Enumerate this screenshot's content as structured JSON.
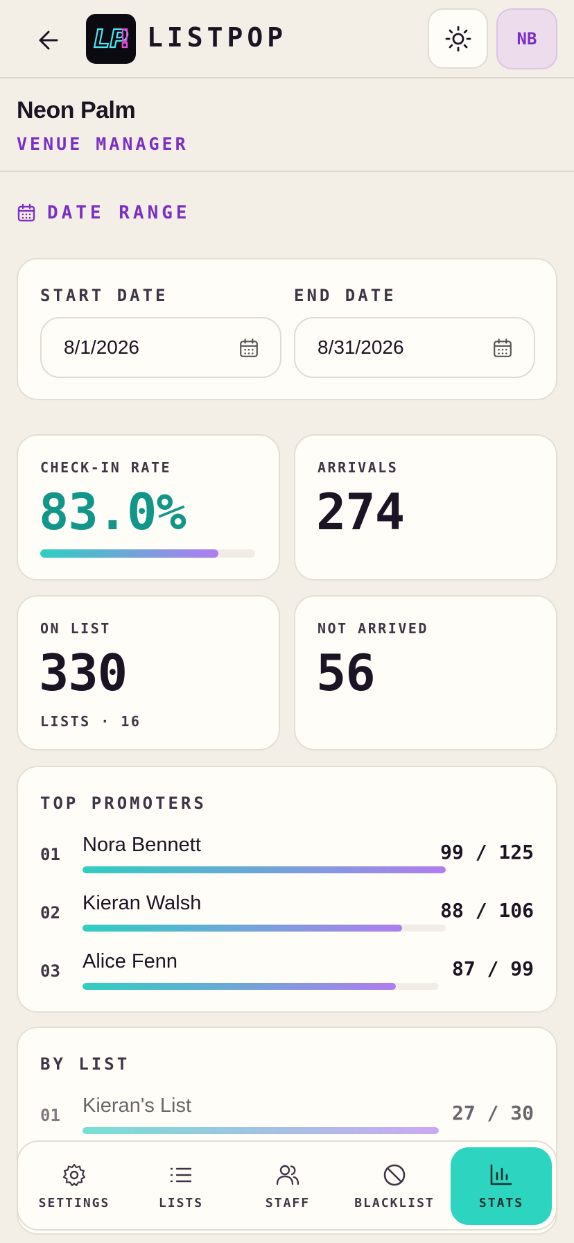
{
  "header": {
    "brand": "LISTPOP",
    "logo_text": "LP!",
    "avatar_initials": "NB"
  },
  "venue": {
    "name": "Neon Palm",
    "role": "VENUE MANAGER"
  },
  "date_range": {
    "title": "DATE RANGE",
    "start_label": "START DATE",
    "start_value": "8/1/2026",
    "end_label": "END DATE",
    "end_value": "8/31/2026"
  },
  "stats": {
    "checkin_label": "CHECK-IN RATE",
    "checkin_value": "83.0%",
    "checkin_fraction": 0.83,
    "arrivals_label": "ARRIVALS",
    "arrivals_value": "274",
    "onlist_label": "ON LIST",
    "onlist_value": "330",
    "lists_count": "LISTS · 16",
    "notarrived_label": "NOT ARRIVED",
    "notarrived_value": "56"
  },
  "top_promoters": {
    "title": "TOP PROMOTERS",
    "items": [
      {
        "rank": "01",
        "name": "Nora Bennett",
        "count": "99 / 125",
        "fraction": 1.0
      },
      {
        "rank": "02",
        "name": "Kieran Walsh",
        "count": "88 / 106",
        "fraction": 0.88
      },
      {
        "rank": "03",
        "name": "Alice Fenn",
        "count": "87 / 99",
        "fraction": 0.88
      }
    ]
  },
  "by_list": {
    "title": "BY LIST",
    "items": [
      {
        "rank": "01",
        "name": "Kieran's List",
        "count": "27 / 30",
        "fraction": 1.0
      }
    ]
  },
  "nav": {
    "items": [
      {
        "label": "SETTINGS",
        "icon": "gear-icon"
      },
      {
        "label": "LISTS",
        "icon": "list-icon"
      },
      {
        "label": "STAFF",
        "icon": "staff-icon"
      },
      {
        "label": "BLACKLIST",
        "icon": "ban-icon"
      },
      {
        "label": "STATS",
        "icon": "bar-chart-icon"
      }
    ],
    "active": "STATS"
  },
  "colors": {
    "accent_purple": "#7b2fc4",
    "accent_teal": "#2dd4bf",
    "background": "#f4efe6"
  }
}
